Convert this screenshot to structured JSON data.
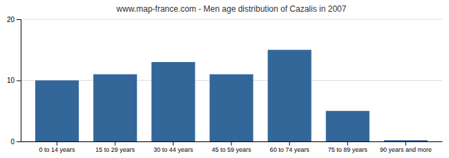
{
  "chart_data": {
    "type": "bar",
    "title": "www.map-france.com - Men age distribution of Cazalis in 2007",
    "categories": [
      "0 to 14 years",
      "15 to 29 years",
      "30 to 44 years",
      "45 to 59 years",
      "60 to 74 years",
      "75 to 89 years",
      "90 years and more"
    ],
    "values": [
      10,
      11,
      13,
      11,
      15,
      5,
      0.2
    ],
    "color": "#336699",
    "ylim": [
      0,
      20
    ],
    "yticks": [
      0,
      10,
      20
    ],
    "grid": true
  }
}
